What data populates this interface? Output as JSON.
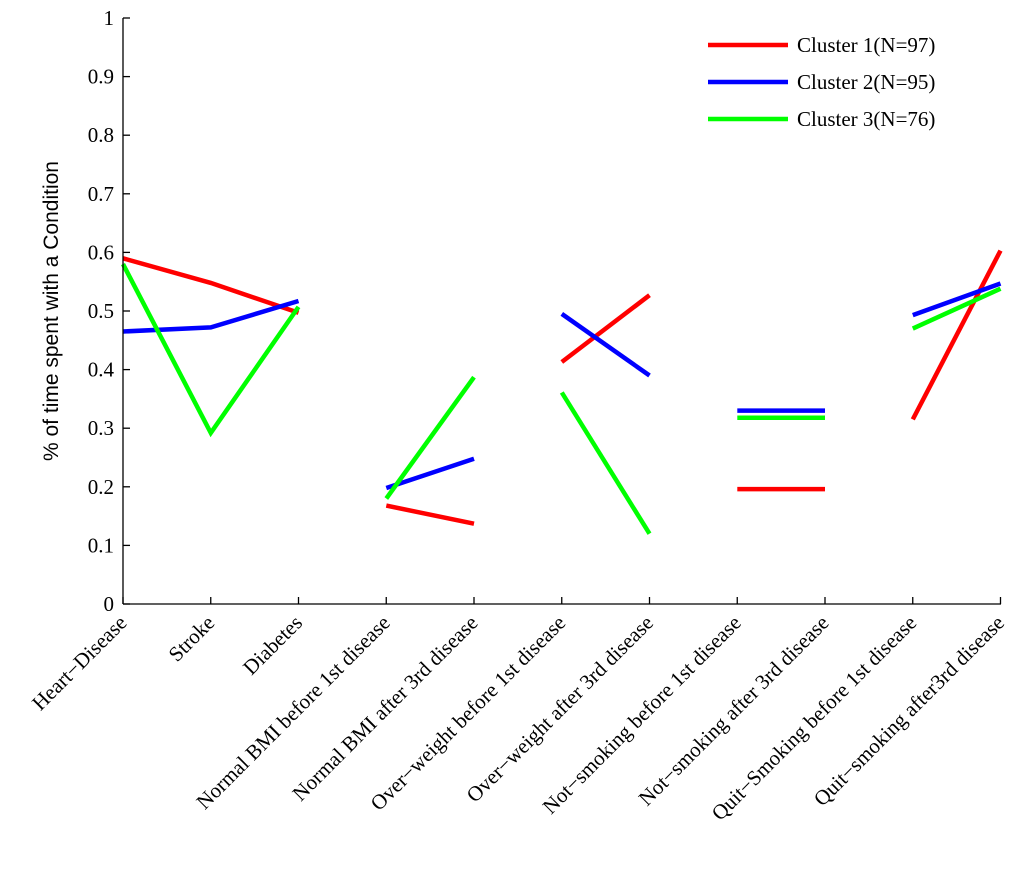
{
  "chart_data": {
    "type": "line",
    "ylabel": "% of time spent with a Condition",
    "xlabel": "",
    "ylim": [
      0,
      1
    ],
    "yticks": [
      "0",
      "0.1",
      "0.2",
      "0.3",
      "0.4",
      "0.5",
      "0.6",
      "0.7",
      "0.8",
      "0.9",
      "1"
    ],
    "categories": [
      "Heart−Disease",
      "Stroke",
      "Diabetes",
      "Normal BMI before 1st disease",
      "Normal BMI after 3rd disease",
      "Over−weight before 1st disease",
      "Over−weight after 3rd disease",
      "Not−smoking before 1st disease",
      "Not−smoking after 3rd disease",
      "Quit−Smoking before 1st disease",
      "Quit−smoking after3rd disease"
    ],
    "segments": [
      [
        0,
        2
      ],
      [
        3,
        4
      ],
      [
        5,
        6
      ],
      [
        7,
        8
      ],
      [
        9,
        10
      ]
    ],
    "legend_position": "top-right",
    "grid": false,
    "series": [
      {
        "name": "Cluster 1(N=97)",
        "color": "#ff0000",
        "values": [
          0.59,
          0.548,
          0.497,
          0.168,
          0.137,
          0.413,
          0.527,
          0.196,
          0.196,
          0.315,
          0.603
        ]
      },
      {
        "name": "Cluster 2(N=95)",
        "color": "#0000ff",
        "values": [
          0.465,
          0.472,
          0.517,
          0.198,
          0.248,
          0.495,
          0.39,
          0.33,
          0.33,
          0.493,
          0.547
        ]
      },
      {
        "name": "Cluster 3(N=76)",
        "color": "#00ff00",
        "values": [
          0.58,
          0.292,
          0.507,
          0.18,
          0.387,
          0.361,
          0.12,
          0.318,
          0.318,
          0.47,
          0.538
        ]
      }
    ]
  }
}
